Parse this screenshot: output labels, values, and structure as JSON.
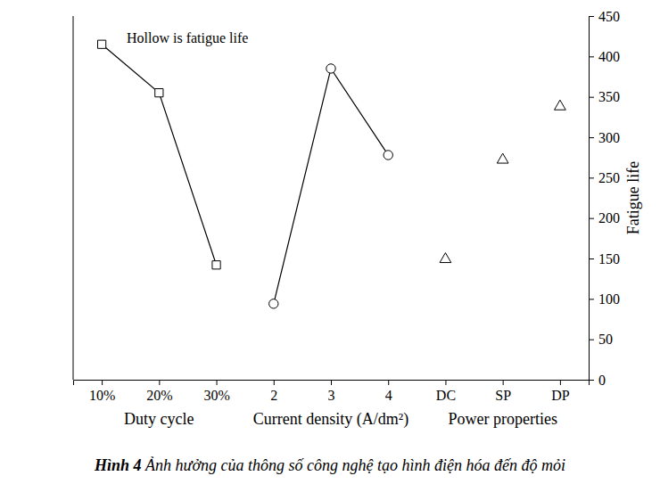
{
  "chart_data": {
    "type": "line",
    "annotation": "Hollow is fatigue life",
    "y_axis_label": "Fatigue life",
    "categories": [
      "10%",
      "20%",
      "30%",
      "2",
      "3",
      "4",
      "DC",
      "SP",
      "DP"
    ],
    "x_groups": [
      "Duty cycle",
      "Current density (A/dm²)",
      "Power properties"
    ],
    "series": [
      {
        "color": "#000000",
        "marker": "square",
        "line_style": "solid",
        "values": [
          415,
          355,
          142,
          null,
          null,
          null,
          null,
          null,
          null
        ]
      },
      {
        "color": "#000000",
        "marker": "circle",
        "line_style": "solid",
        "values": [
          null,
          null,
          null,
          94,
          385,
          278,
          null,
          null,
          null
        ]
      },
      {
        "color": "#000000",
        "marker": "triangle",
        "line_style": "none",
        "values": [
          null,
          null,
          null,
          null,
          null,
          null,
          149,
          272,
          338
        ]
      }
    ],
    "ylim": [
      0,
      450
    ],
    "yticks": [
      0,
      50,
      100,
      150,
      200,
      250,
      300,
      350,
      400,
      450
    ],
    "grid": false,
    "caption": {
      "label": "Hình 4",
      "text": "Ảnh hưởng của thông số công nghệ tạo hình điện hóa đến độ mỏi"
    }
  }
}
